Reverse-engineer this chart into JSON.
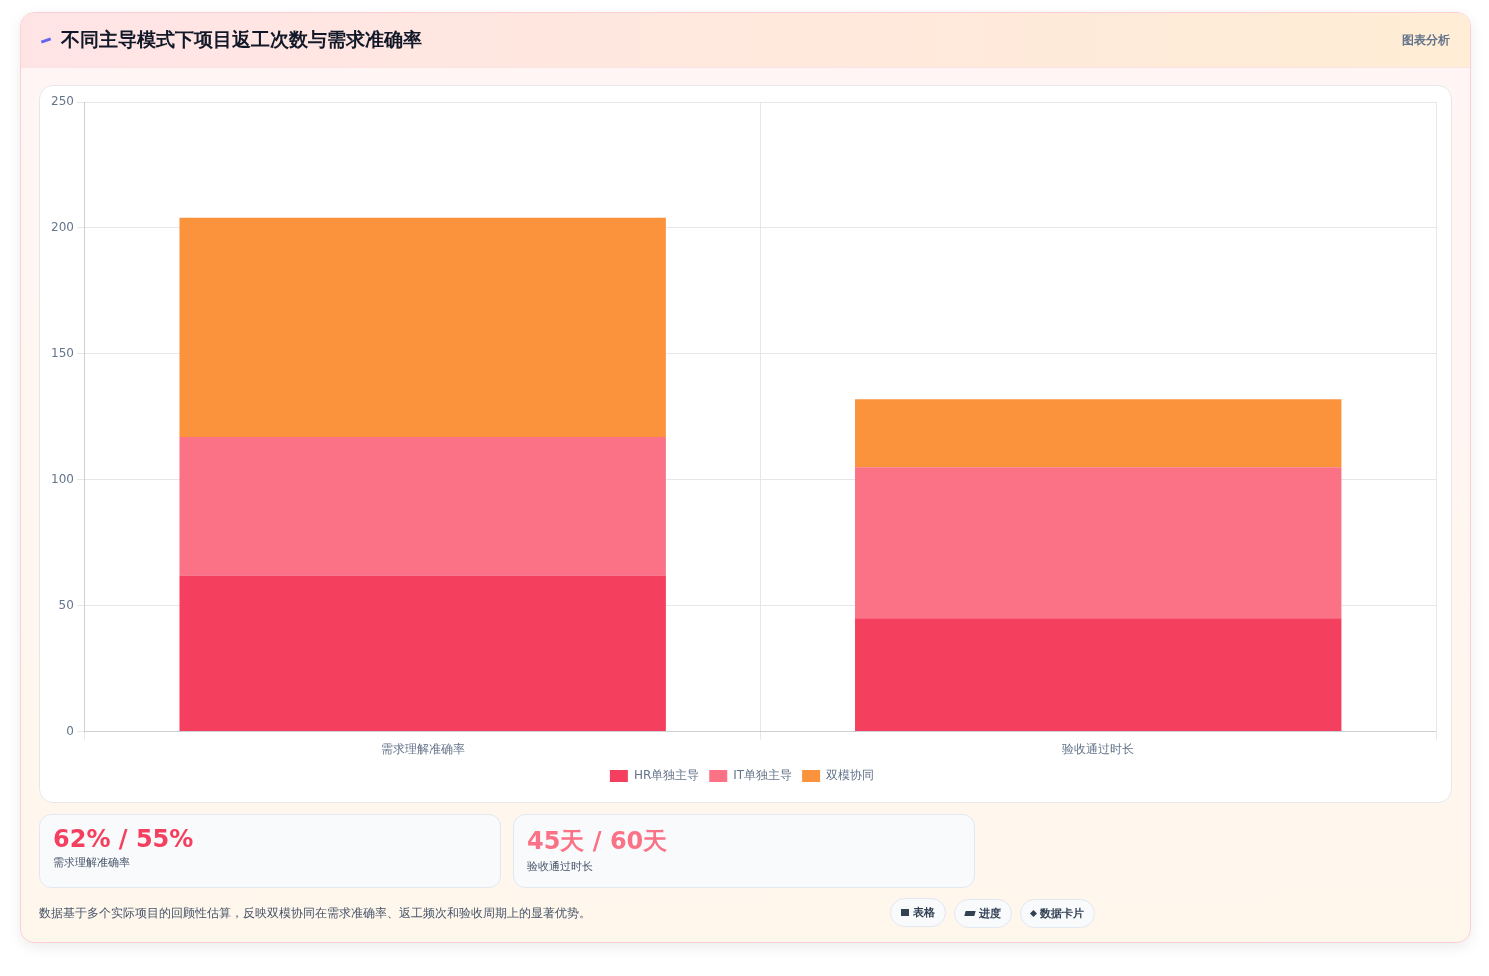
{
  "chart_data": {
    "type": "bar",
    "title": "不同主导模式下项目返工次数与需求准确率",
    "categories": [
      "需求理解准确率",
      "验收通过时长"
    ],
    "series": [
      {
        "name": "HR单独主导",
        "color": "#f43f5e",
        "values": [
          62,
          45
        ]
      },
      {
        "name": "IT单独主导",
        "color": "#fb7185",
        "values": [
          55,
          60
        ]
      },
      {
        "name": "双模协同",
        "color": "#fb923c",
        "values": [
          87,
          27
        ]
      }
    ],
    "stacked": true,
    "ylim": [
      0,
      250
    ],
    "yticks": [
      0,
      50,
      100,
      150,
      200,
      250
    ],
    "grid": true,
    "legend": "bottom",
    "annotations": [
      "图表分析",
      "62% / 55%",
      "需求理解准确率",
      "45天 / 60天",
      "验收通过时长",
      "数据基于多个实际项目的回顾性估算，反映双模协同在需求准确率、返工频次和验收周期上的显著优势。",
      "表格",
      "进度",
      "数据卡片"
    ]
  }
}
